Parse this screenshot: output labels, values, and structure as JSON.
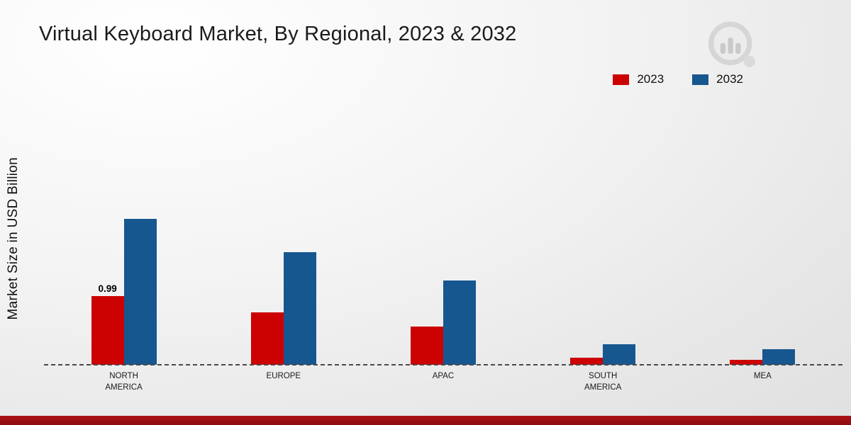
{
  "title": "Virtual Keyboard Market, By Regional, 2023 & 2032",
  "ylabel": "Market Size in USD Billion",
  "legend": [
    {
      "label": "2023",
      "color": "#cc0202"
    },
    {
      "label": "2032",
      "color": "#16578f"
    }
  ],
  "footer_color": "#9a0e12",
  "chart_data": {
    "type": "bar",
    "title": "Virtual Keyboard Market, By Regional, 2023 & 2032",
    "xlabel": "",
    "ylabel": "Market Size in USD Billion",
    "ylim": [
      0,
      2.5
    ],
    "grid": false,
    "legend_position": "top-right",
    "categories": [
      "NORTH AMERICA",
      "EUROPE",
      "APAC",
      "SOUTH AMERICA",
      "MEA"
    ],
    "series": [
      {
        "name": "2023",
        "color": "#cc0202",
        "values": [
          0.99,
          0.75,
          0.55,
          0.1,
          0.07
        ]
      },
      {
        "name": "2032",
        "color": "#16578f",
        "values": [
          2.1,
          1.62,
          1.21,
          0.3,
          0.22
        ]
      }
    ],
    "bar_labels": [
      {
        "series_index": 0,
        "category_index": 0,
        "text": "0.99"
      }
    ],
    "baseline": "dashed"
  }
}
